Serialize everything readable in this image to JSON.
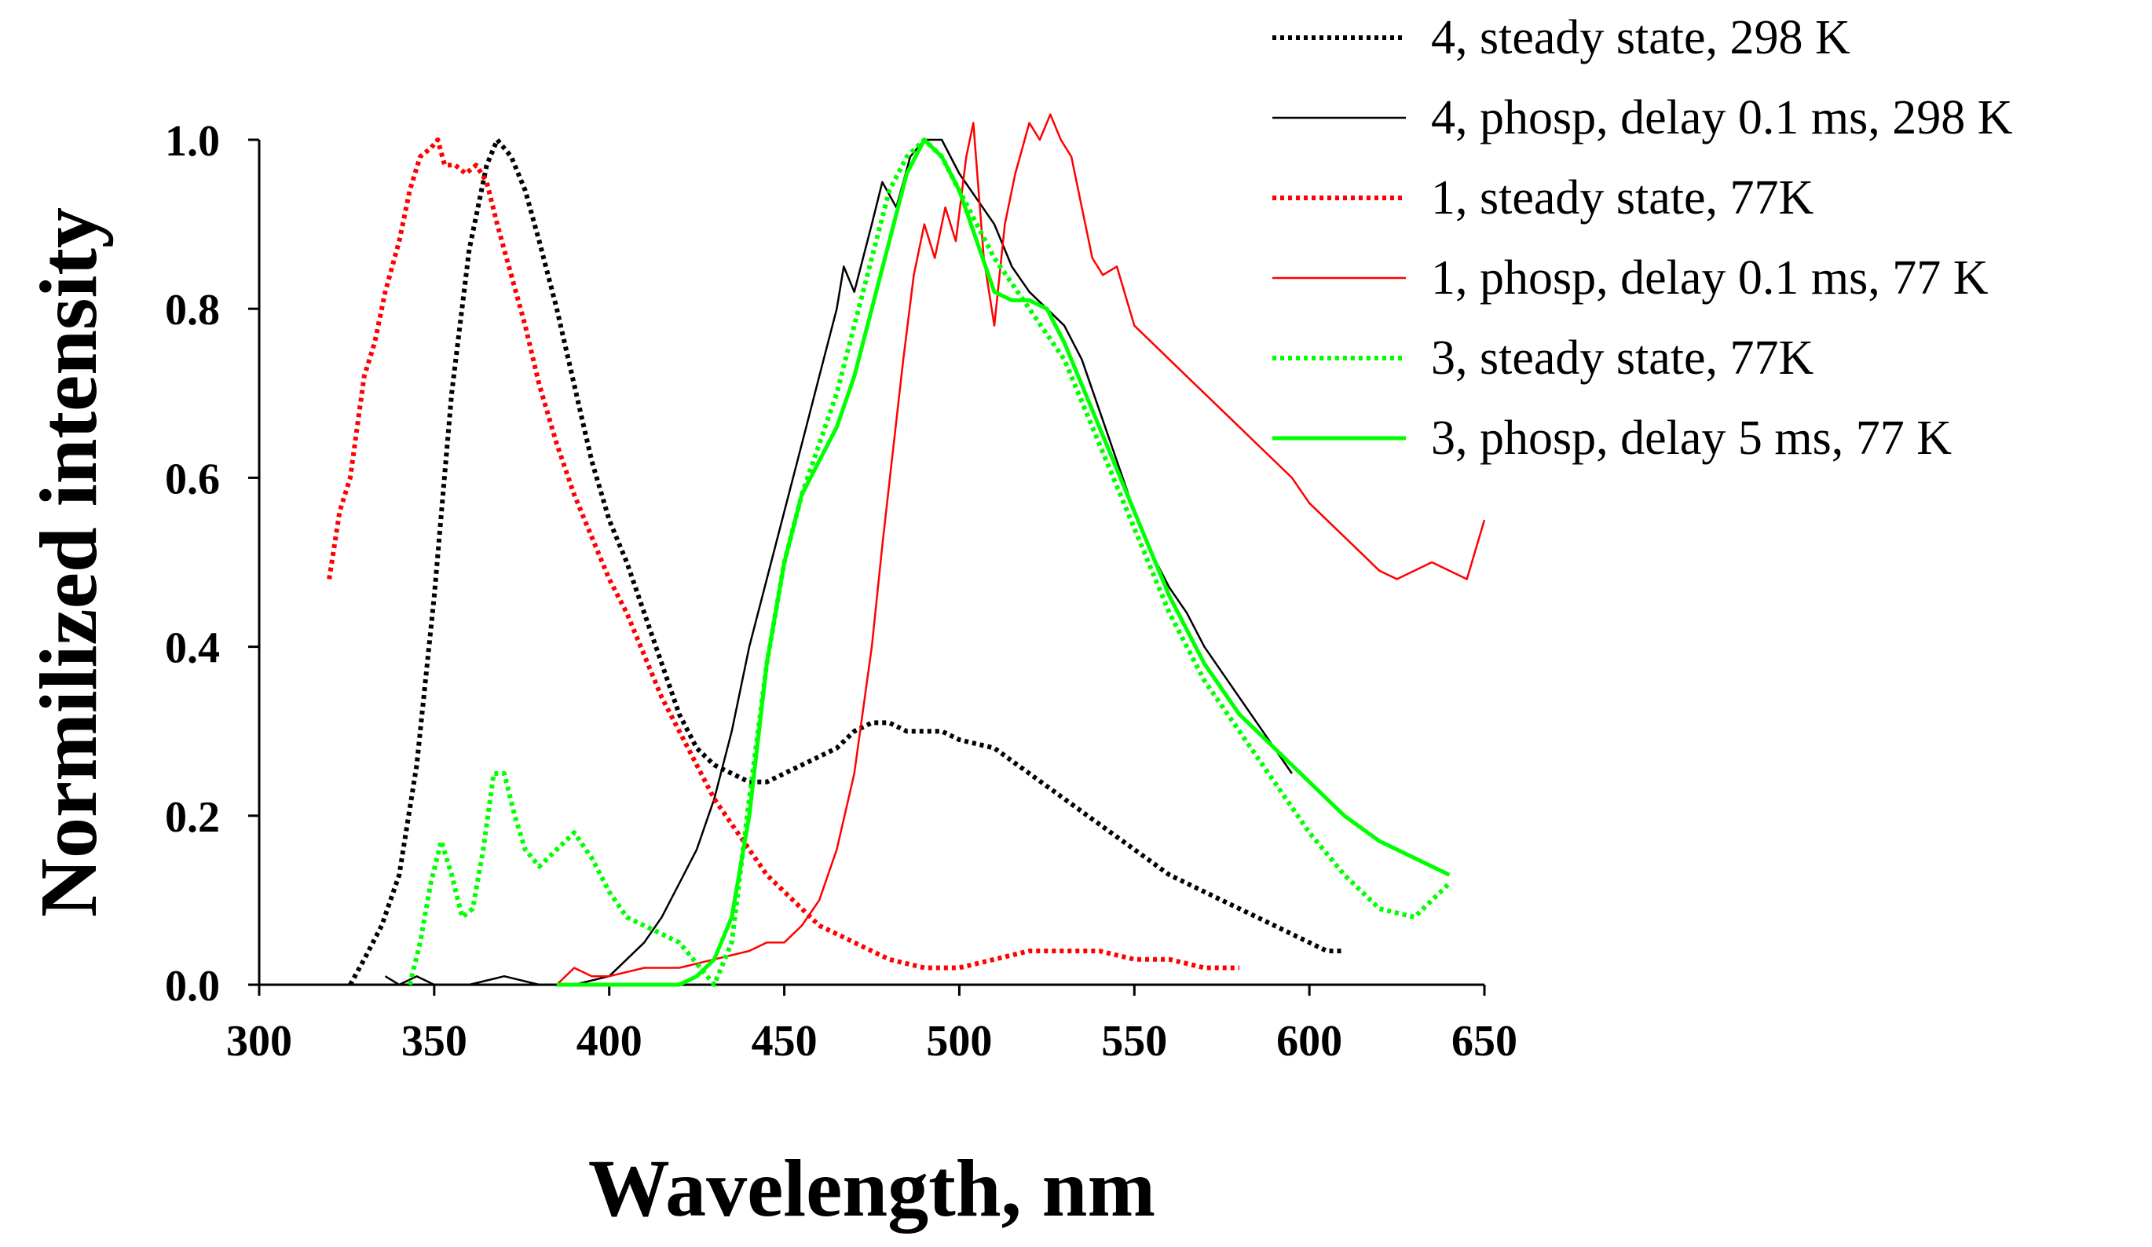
{
  "chart_data": {
    "type": "line",
    "title": "",
    "xlabel": "Wavelength, nm",
    "ylabel": "Normilized intensity",
    "xlim": [
      300,
      650
    ],
    "ylim": [
      0,
      1.0
    ],
    "xticks": [
      300,
      350,
      400,
      450,
      500,
      550,
      600,
      650
    ],
    "yticks": [
      0.0,
      0.2,
      0.4,
      0.6,
      0.8,
      1.0
    ],
    "xtick_labels": [
      "300",
      "350",
      "400",
      "450",
      "500",
      "550",
      "600",
      "650"
    ],
    "ytick_labels": [
      "0.0",
      "0.2",
      "0.4",
      "0.6",
      "0.8",
      "1.0"
    ],
    "grid": false,
    "legend_position": "top-right",
    "series": [
      {
        "name": "4, steady state, 298 K",
        "color": "#000000",
        "style": "dotted",
        "x": [
          326,
          330,
          335,
          340,
          345,
          350,
          355,
          360,
          365,
          368,
          372,
          376,
          380,
          385,
          390,
          395,
          400,
          405,
          410,
          415,
          420,
          425,
          430,
          435,
          440,
          445,
          450,
          455,
          460,
          465,
          470,
          475,
          480,
          485,
          490,
          495,
          500,
          510,
          520,
          530,
          540,
          550,
          560,
          570,
          580,
          590,
          600,
          605,
          610
        ],
        "values": [
          0.0,
          0.03,
          0.07,
          0.13,
          0.26,
          0.46,
          0.7,
          0.87,
          0.97,
          1.0,
          0.98,
          0.94,
          0.88,
          0.8,
          0.71,
          0.62,
          0.55,
          0.5,
          0.44,
          0.38,
          0.32,
          0.28,
          0.26,
          0.25,
          0.24,
          0.24,
          0.25,
          0.26,
          0.27,
          0.28,
          0.3,
          0.31,
          0.31,
          0.3,
          0.3,
          0.3,
          0.29,
          0.28,
          0.25,
          0.22,
          0.19,
          0.16,
          0.13,
          0.11,
          0.09,
          0.07,
          0.05,
          0.04,
          0.04
        ]
      },
      {
        "name": "4, phosp, delay 0.1 ms, 298 K",
        "color": "#000000",
        "style": "solid",
        "x": [
          336,
          340,
          345,
          350,
          360,
          370,
          380,
          390,
          400,
          405,
          410,
          415,
          420,
          425,
          430,
          435,
          440,
          445,
          450,
          455,
          460,
          465,
          467,
          470,
          475,
          478,
          482,
          486,
          490,
          495,
          500,
          505,
          510,
          515,
          520,
          525,
          530,
          535,
          540,
          545,
          550,
          555,
          560,
          565,
          570,
          575,
          580,
          585,
          590,
          595
        ],
        "values": [
          0.01,
          0.0,
          0.01,
          0.0,
          0.0,
          0.01,
          0.0,
          0.0,
          0.01,
          0.03,
          0.05,
          0.08,
          0.12,
          0.16,
          0.22,
          0.3,
          0.4,
          0.48,
          0.56,
          0.64,
          0.72,
          0.8,
          0.85,
          0.82,
          0.9,
          0.95,
          0.92,
          0.98,
          1.0,
          1.0,
          0.96,
          0.93,
          0.9,
          0.85,
          0.82,
          0.8,
          0.78,
          0.74,
          0.68,
          0.62,
          0.56,
          0.51,
          0.47,
          0.44,
          0.4,
          0.37,
          0.34,
          0.31,
          0.28,
          0.25
        ]
      },
      {
        "name": "1, steady state, 77K",
        "color": "#ff0000",
        "style": "dotted",
        "x": [
          320,
          323,
          326,
          328,
          330,
          333,
          336,
          340,
          343,
          346,
          349,
          351,
          353,
          356,
          359,
          362,
          365,
          368,
          372,
          376,
          380,
          385,
          390,
          395,
          400,
          405,
          410,
          415,
          420,
          425,
          430,
          435,
          440,
          445,
          450,
          455,
          460,
          465,
          470,
          475,
          480,
          490,
          500,
          510,
          520,
          530,
          540,
          550,
          560,
          570,
          580
        ],
        "values": [
          0.48,
          0.56,
          0.6,
          0.66,
          0.72,
          0.76,
          0.82,
          0.88,
          0.94,
          0.98,
          0.99,
          1.0,
          0.97,
          0.97,
          0.96,
          0.97,
          0.95,
          0.9,
          0.84,
          0.78,
          0.71,
          0.64,
          0.58,
          0.53,
          0.48,
          0.44,
          0.39,
          0.34,
          0.3,
          0.26,
          0.22,
          0.19,
          0.16,
          0.13,
          0.11,
          0.09,
          0.07,
          0.06,
          0.05,
          0.04,
          0.03,
          0.02,
          0.02,
          0.03,
          0.04,
          0.04,
          0.04,
          0.03,
          0.03,
          0.02,
          0.02
        ]
      },
      {
        "name": "1, phosp, delay 0.1 ms, 77 K",
        "color": "#ff0000",
        "style": "solid",
        "x": [
          385,
          390,
          395,
          400,
          410,
          420,
          430,
          440,
          445,
          450,
          455,
          460,
          465,
          470,
          475,
          478,
          481,
          484,
          487,
          490,
          493,
          496,
          499,
          502,
          504,
          507,
          510,
          513,
          516,
          520,
          523,
          526,
          529,
          532,
          535,
          538,
          541,
          545,
          550,
          555,
          560,
          565,
          570,
          575,
          580,
          585,
          590,
          595,
          600,
          605,
          610,
          615,
          620,
          625,
          630,
          635,
          640,
          645,
          650
        ],
        "values": [
          0.0,
          0.02,
          0.01,
          0.01,
          0.02,
          0.02,
          0.03,
          0.04,
          0.05,
          0.05,
          0.07,
          0.1,
          0.16,
          0.25,
          0.4,
          0.52,
          0.63,
          0.74,
          0.84,
          0.9,
          0.86,
          0.92,
          0.88,
          0.98,
          1.02,
          0.86,
          0.78,
          0.9,
          0.96,
          1.02,
          1.0,
          1.03,
          1.0,
          0.98,
          0.92,
          0.86,
          0.84,
          0.85,
          0.78,
          0.76,
          0.74,
          0.72,
          0.7,
          0.68,
          0.66,
          0.64,
          0.62,
          0.6,
          0.57,
          0.55,
          0.53,
          0.51,
          0.49,
          0.48,
          0.49,
          0.5,
          0.49,
          0.48,
          0.55
        ]
      },
      {
        "name": "3, steady state, 77K",
        "color": "#00ff00",
        "style": "dotted",
        "x": [
          343,
          346,
          349,
          352,
          355,
          358,
          361,
          364,
          367,
          370,
          373,
          376,
          380,
          385,
          390,
          395,
          400,
          405,
          410,
          420,
          430,
          435,
          440,
          445,
          450,
          455,
          460,
          465,
          470,
          475,
          480,
          485,
          490,
          495,
          500,
          510,
          520,
          530,
          540,
          550,
          560,
          570,
          580,
          590,
          600,
          610,
          620,
          630,
          640
        ],
        "values": [
          0.0,
          0.05,
          0.12,
          0.17,
          0.13,
          0.08,
          0.09,
          0.16,
          0.25,
          0.25,
          0.2,
          0.16,
          0.14,
          0.16,
          0.18,
          0.15,
          0.11,
          0.08,
          0.07,
          0.05,
          0.0,
          0.05,
          0.22,
          0.38,
          0.5,
          0.58,
          0.64,
          0.7,
          0.78,
          0.86,
          0.94,
          0.98,
          1.0,
          0.98,
          0.94,
          0.86,
          0.8,
          0.74,
          0.64,
          0.54,
          0.44,
          0.36,
          0.3,
          0.24,
          0.18,
          0.13,
          0.09,
          0.08,
          0.12
        ]
      },
      {
        "name": "3, phosp, delay 5 ms, 77 K",
        "color": "#00ff00",
        "style": "solid",
        "x": [
          385,
          400,
          410,
          420,
          425,
          430,
          435,
          440,
          445,
          450,
          455,
          460,
          465,
          470,
          475,
          480,
          485,
          490,
          495,
          500,
          505,
          510,
          515,
          520,
          525,
          530,
          540,
          550,
          560,
          570,
          580,
          590,
          600,
          610,
          620,
          630,
          640
        ],
        "values": [
          0.0,
          0.0,
          0.0,
          0.0,
          0.01,
          0.03,
          0.08,
          0.2,
          0.38,
          0.5,
          0.58,
          0.62,
          0.66,
          0.72,
          0.8,
          0.88,
          0.96,
          1.0,
          0.98,
          0.94,
          0.88,
          0.82,
          0.81,
          0.81,
          0.8,
          0.76,
          0.66,
          0.56,
          0.46,
          0.38,
          0.32,
          0.28,
          0.24,
          0.2,
          0.17,
          0.15,
          0.13
        ]
      }
    ]
  }
}
